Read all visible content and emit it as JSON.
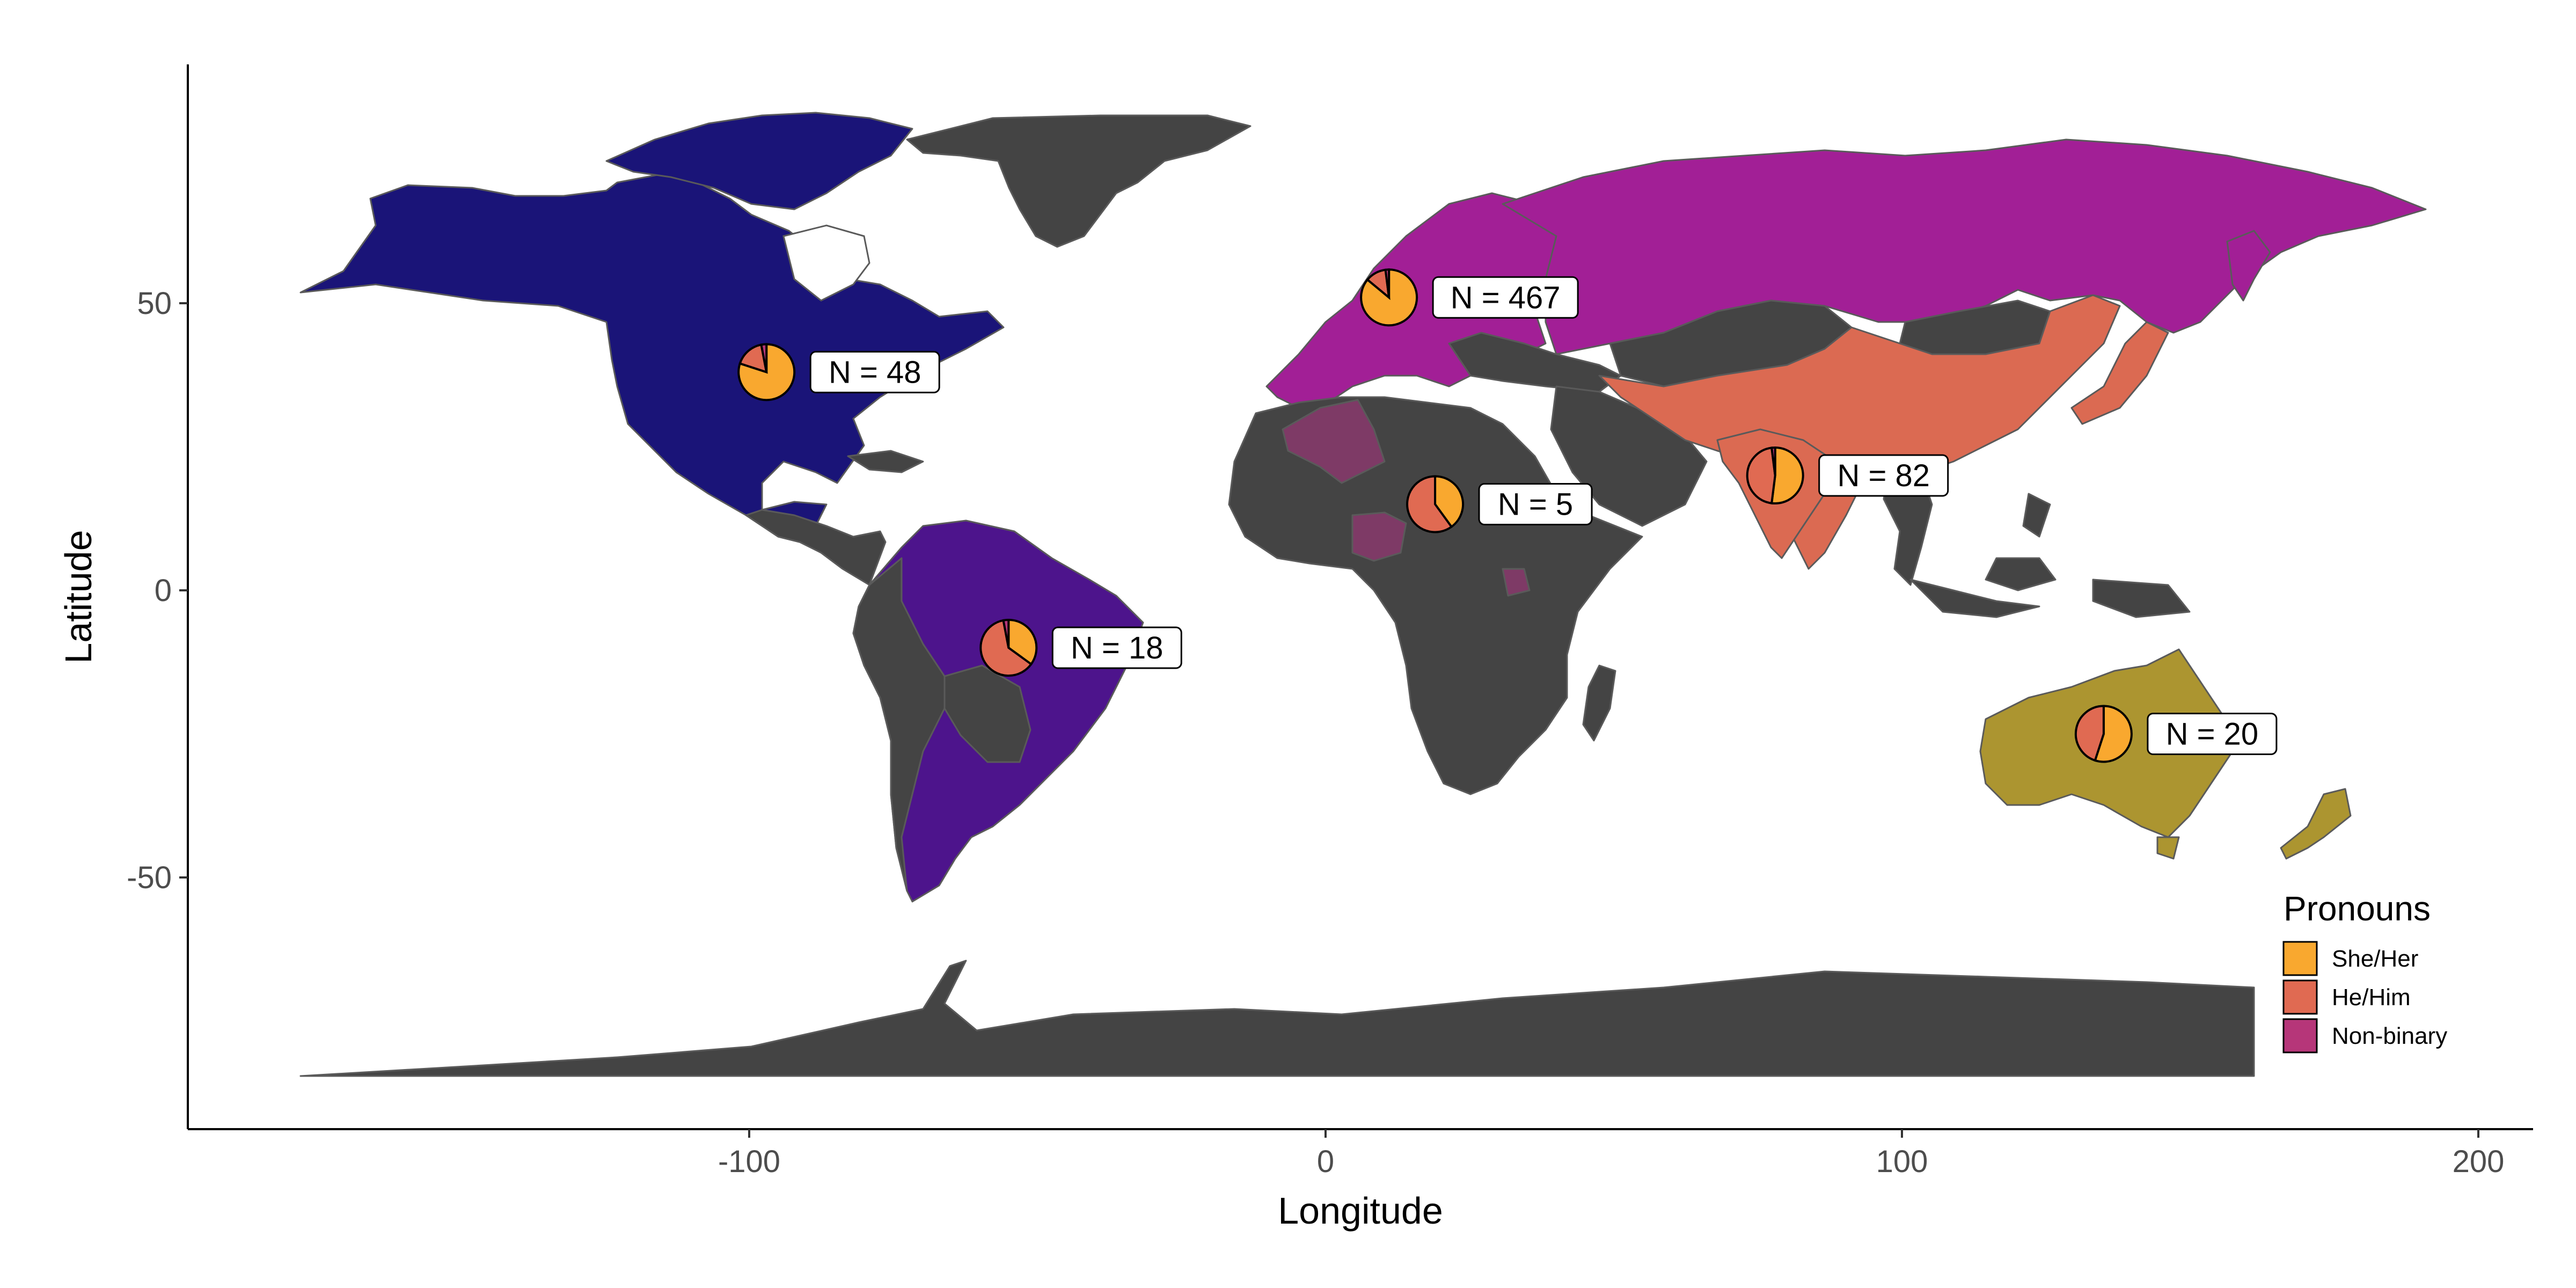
{
  "chart_data": {
    "type": "map",
    "xlabel": "Longitude",
    "ylabel": "Latitude",
    "xlim": [
      -200,
      210
    ],
    "ylim": [
      -94,
      92
    ],
    "x_ticks": [
      -100,
      0,
      100,
      200
    ],
    "y_ticks": [
      -50,
      0,
      50
    ],
    "x_tick_labels": [
      "-100",
      "0",
      "100",
      "200"
    ],
    "y_tick_labels": [
      "-50",
      "0",
      "50"
    ],
    "grid": false,
    "legend_placement": "bottom-right",
    "legend": {
      "title": "Pronouns",
      "items": [
        {
          "label": "She/Her",
          "color": "#F9A82F"
        },
        {
          "label": "He/Him",
          "color": "#E06A52"
        },
        {
          "label": "Non-binary",
          "color": "#B63679"
        }
      ]
    },
    "region_colors": {
      "north_america": "#1A1478",
      "south_america": "#4D148C",
      "europe_russia": "#A21F96",
      "asia": "#DB6A52",
      "oceania": "#AC9530",
      "africa_highlight": "#7E3A66",
      "background_land": "#444444",
      "ocean": "#FFFFFF"
    },
    "pies": [
      {
        "name": "North America",
        "lon": -97,
        "lat": 38,
        "n_label": "N = 48",
        "n": 48,
        "values": [
          0.8,
          0.17,
          0.03
        ]
      },
      {
        "name": "South America",
        "lon": -55,
        "lat": -10,
        "n_label": "N = 18",
        "n": 18,
        "values": [
          0.35,
          0.62,
          0.03
        ]
      },
      {
        "name": "Europe",
        "lon": 11,
        "lat": 51,
        "n_label": "N = 467",
        "n": 467,
        "values": [
          0.86,
          0.12,
          0.02
        ]
      },
      {
        "name": "Africa",
        "lon": 19,
        "lat": 15,
        "n_label": "N = 5",
        "n": 5,
        "values": [
          0.4,
          0.6,
          0.0
        ]
      },
      {
        "name": "Asia",
        "lon": 78,
        "lat": 20,
        "n_label": "N = 82",
        "n": 82,
        "values": [
          0.52,
          0.46,
          0.02
        ]
      },
      {
        "name": "Oceania",
        "lon": 135,
        "lat": -25,
        "n_label": "N = 20",
        "n": 20,
        "values": [
          0.55,
          0.45,
          0.0
        ]
      }
    ]
  }
}
